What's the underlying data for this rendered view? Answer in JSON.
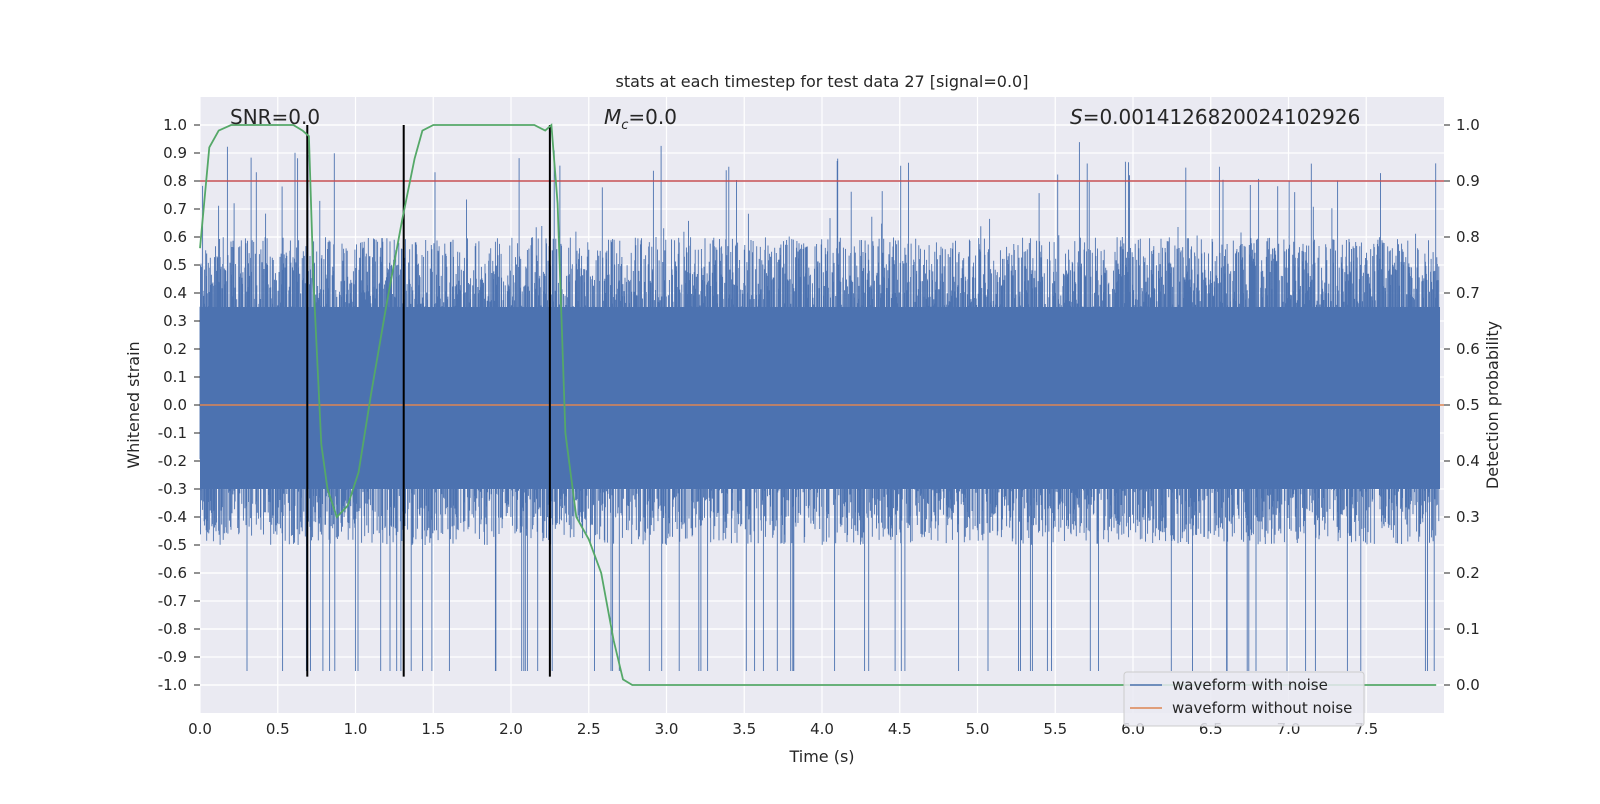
{
  "chart_data": {
    "type": "line",
    "title": "stats at each timestep for test data 27 [signal=0.0]",
    "xlabel": "Time (s)",
    "ylabel_left": "Whitened strain",
    "ylabel_right": "Detection probability",
    "xlim": [
      0.0,
      8.0
    ],
    "ylim_left": [
      -1.1,
      1.1
    ],
    "ylim_right": [
      -0.05,
      1.05
    ],
    "grid": true,
    "legend_position": "lower-right",
    "x_ticks": [
      "0.0",
      "0.5",
      "1.0",
      "1.5",
      "2.0",
      "2.5",
      "3.0",
      "3.5",
      "4.0",
      "4.5",
      "5.0",
      "5.5",
      "6.0",
      "6.5",
      "7.0",
      "7.5"
    ],
    "x_tick_values": [
      0.0,
      0.5,
      1.0,
      1.5,
      2.0,
      2.5,
      3.0,
      3.5,
      4.0,
      4.5,
      5.0,
      5.5,
      6.0,
      6.5,
      7.0,
      7.5
    ],
    "y_left_ticks": [
      "1.0",
      "0.9",
      "0.8",
      "0.7",
      "0.6",
      "0.5",
      "0.4",
      "0.3",
      "0.2",
      "0.1",
      "0.0",
      "-0.1",
      "-0.2",
      "-0.3",
      "-0.4",
      "-0.5",
      "-0.6",
      "-0.7",
      "-0.8",
      "-0.9",
      "-1.0"
    ],
    "y_left_tick_values": [
      1.0,
      0.9,
      0.8,
      0.7,
      0.6,
      0.5,
      0.4,
      0.3,
      0.2,
      0.1,
      0.0,
      -0.1,
      -0.2,
      -0.3,
      -0.4,
      -0.5,
      -0.6,
      -0.7,
      -0.8,
      -0.9,
      -1.0
    ],
    "y_right_ticks": [
      "1.0",
      "0.9",
      "0.8",
      "0.7",
      "0.6",
      "0.5",
      "0.4",
      "0.3",
      "0.2",
      "0.1",
      "0.0"
    ],
    "y_right_tick_values": [
      1.0,
      0.9,
      0.8,
      0.7,
      0.6,
      0.5,
      0.4,
      0.3,
      0.2,
      0.1,
      0.0
    ],
    "annotations": {
      "snr": "SNR=0.0",
      "mc_symbol": "M",
      "mc_sub": "c",
      "mc_value": "=0.0",
      "s_symbol": "S",
      "s_value": "=0.0014126820024102926"
    },
    "series": [
      {
        "name": "waveform with noise",
        "color": "#4c72b0",
        "noise_envelope": [
          [
            -0.45,
            0.55
          ]
        ],
        "spike_max": 0.95,
        "spike_min": -0.95
      },
      {
        "name": "waveform without noise",
        "color": "#dd8452",
        "values_constant": 0.0
      },
      {
        "name": "detection probability",
        "color": "#55a868",
        "axis": "right",
        "x": [
          0.0,
          0.06,
          0.12,
          0.2,
          0.3,
          0.4,
          0.5,
          0.6,
          0.66,
          0.7,
          0.73,
          0.78,
          0.82,
          0.88,
          0.95,
          1.02,
          1.1,
          1.2,
          1.3,
          1.38,
          1.43,
          1.5,
          1.6,
          1.8,
          2.0,
          2.15,
          2.22,
          2.26,
          2.3,
          2.35,
          2.42,
          2.5,
          2.58,
          2.66,
          2.72,
          2.78,
          2.85,
          3.0,
          3.5,
          4.0,
          5.0,
          6.0,
          7.0,
          7.95
        ],
        "values": [
          0.78,
          0.96,
          0.99,
          1.0,
          1.0,
          1.0,
          1.0,
          1.0,
          0.99,
          0.98,
          0.72,
          0.43,
          0.35,
          0.3,
          0.32,
          0.38,
          0.52,
          0.68,
          0.83,
          0.94,
          0.99,
          1.0,
          1.0,
          1.0,
          1.0,
          1.0,
          0.99,
          1.0,
          0.86,
          0.45,
          0.3,
          0.26,
          0.2,
          0.08,
          0.01,
          0.0,
          0.0,
          0.0,
          0.0,
          0.0,
          0.0,
          0.0,
          0.0,
          0.0
        ]
      }
    ],
    "hlines": [
      {
        "axis": "right",
        "value": 0.9,
        "color": "#c44e52"
      }
    ],
    "vlines": [
      {
        "x": 0.69,
        "ymin": -0.97,
        "ymax": 1.0,
        "color": "#000000"
      },
      {
        "x": 1.31,
        "ymin": -0.97,
        "ymax": 1.0,
        "color": "#000000"
      },
      {
        "x": 2.25,
        "ymin": -0.97,
        "ymax": 1.0,
        "color": "#000000"
      }
    ]
  }
}
